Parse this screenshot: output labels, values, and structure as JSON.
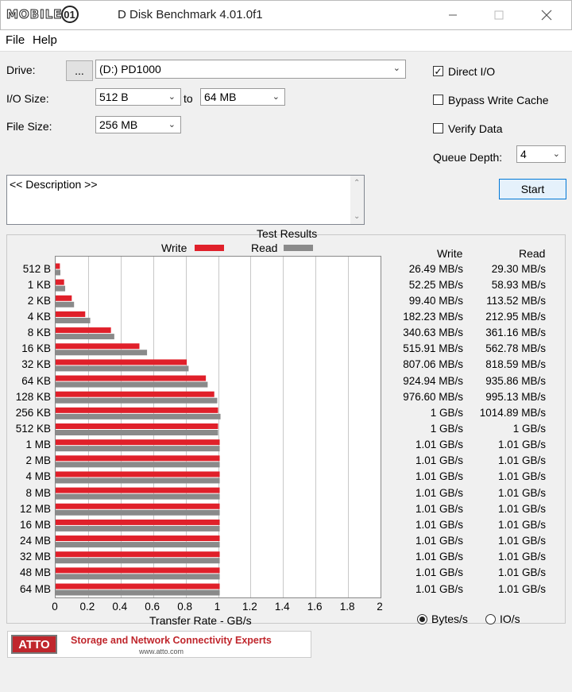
{
  "window": {
    "logo_text": "MOBILE",
    "logo_circle": "01",
    "title": "D Disk Benchmark 4.01.0f1",
    "minimize_icon": "minimize-icon",
    "maximize_icon": "maximize-icon",
    "close_icon": "close-icon"
  },
  "menu": [
    {
      "label": "File"
    },
    {
      "label": "Help"
    }
  ],
  "settings": {
    "drive_label": "Drive:",
    "browse_label": "...",
    "drive_value": "(D:) PD1000",
    "io_size_label": "I/O Size:",
    "io_from": "512 B",
    "to_label": "to",
    "io_to": "64 MB",
    "file_size_label": "File Size:",
    "file_size_value": "256 MB",
    "direct_io_label": "Direct I/O",
    "direct_io_checked": true,
    "bypass_label": "Bypass Write Cache",
    "bypass_checked": false,
    "verify_label": "Verify Data",
    "verify_checked": false,
    "queue_label": "Queue Depth:",
    "queue_value": "4",
    "start_label": "Start"
  },
  "description": {
    "text": "<< Description >>"
  },
  "results": {
    "title": "Test Results",
    "write_header": "Write",
    "read_header": "Read",
    "legend_write": "Write",
    "legend_read": "Read",
    "colors": {
      "write": "#e0202a",
      "read": "#8a8a8a"
    }
  },
  "chart_data": {
    "type": "bar",
    "orientation": "horizontal",
    "xlabel": "Transfer Rate - GB/s",
    "xlim": [
      0,
      2
    ],
    "xticks": [
      "0",
      "0.2",
      "0.4",
      "0.6",
      "0.8",
      "1",
      "1.2",
      "1.4",
      "1.6",
      "1.8",
      "2"
    ],
    "grid": true,
    "legend": "top",
    "categories": [
      "512 B",
      "1 KB",
      "2 KB",
      "4 KB",
      "8 KB",
      "16 KB",
      "32 KB",
      "64 KB",
      "128 KB",
      "256 KB",
      "512 KB",
      "1 MB",
      "2 MB",
      "4 MB",
      "8 MB",
      "12 MB",
      "16 MB",
      "24 MB",
      "32 MB",
      "48 MB",
      "64 MB"
    ],
    "series": [
      {
        "name": "Write",
        "values": [
          0.0265,
          0.0523,
          0.0994,
          0.1823,
          0.3406,
          0.5159,
          0.8071,
          0.9249,
          0.9766,
          1.0,
          1.0,
          1.01,
          1.01,
          1.01,
          1.01,
          1.01,
          1.01,
          1.01,
          1.01,
          1.01,
          1.01
        ]
      },
      {
        "name": "Read",
        "values": [
          0.0293,
          0.0589,
          0.1135,
          0.213,
          0.3612,
          0.5628,
          0.8186,
          0.9359,
          0.9951,
          1.0149,
          1.0,
          1.01,
          1.01,
          1.01,
          1.01,
          1.01,
          1.01,
          1.01,
          1.01,
          1.01,
          1.01
        ]
      }
    ],
    "write_labels": [
      "26.49 MB/s",
      "52.25 MB/s",
      "99.40 MB/s",
      "182.23 MB/s",
      "340.63 MB/s",
      "515.91 MB/s",
      "807.06 MB/s",
      "924.94 MB/s",
      "976.60 MB/s",
      "1 GB/s",
      "1 GB/s",
      "1.01 GB/s",
      "1.01 GB/s",
      "1.01 GB/s",
      "1.01 GB/s",
      "1.01 GB/s",
      "1.01 GB/s",
      "1.01 GB/s",
      "1.01 GB/s",
      "1.01 GB/s",
      "1.01 GB/s"
    ],
    "read_labels": [
      "29.30 MB/s",
      "58.93 MB/s",
      "113.52 MB/s",
      "212.95 MB/s",
      "361.16 MB/s",
      "562.78 MB/s",
      "818.59 MB/s",
      "935.86 MB/s",
      "995.13 MB/s",
      "1014.89 MB/s",
      "1 GB/s",
      "1.01 GB/s",
      "1.01 GB/s",
      "1.01 GB/s",
      "1.01 GB/s",
      "1.01 GB/s",
      "1.01 GB/s",
      "1.01 GB/s",
      "1.01 GB/s",
      "1.01 GB/s",
      "1.01 GB/s"
    ]
  },
  "units": {
    "bytes_label": "Bytes/s",
    "bytes_selected": true,
    "io_label": "IO/s",
    "io_selected": false
  },
  "banner": {
    "logo_text": "ATTO",
    "tagline": "Storage and Network Connectivity Experts",
    "url": "www.atto.com"
  }
}
